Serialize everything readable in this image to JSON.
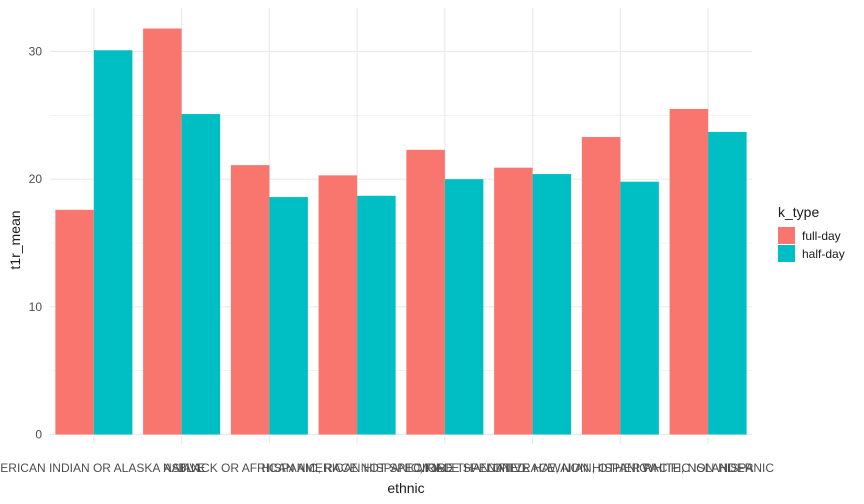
{
  "chart_data": {
    "type": "bar",
    "xlabel": "ethnic",
    "ylabel": "t1r_mean",
    "ylim": [
      0,
      32.5
    ],
    "yticks": [
      0,
      10,
      20,
      30
    ],
    "grid": true,
    "legend_position": "right",
    "legend_title": "k_type",
    "categories": [
      "AMERICAN INDIAN OR ALASKA NATIVE",
      "ASIAN",
      "BLACK OR AFRICAN AMERICAN",
      "HISPANIC, RACE NOT SPECIFIED",
      "HISPANIC, RACE SPECIFIED",
      "MORE THAN ONE RACE, NON HISPANIC",
      "NATIVE HAWAIIAN, OTHER PACIFIC ISLANDER",
      "WHITE, NON-HISPANIC"
    ],
    "series": [
      {
        "name": "full-day",
        "color": "#F8766D",
        "values": [
          17.6,
          31.8,
          21.1,
          20.3,
          22.3,
          20.9,
          23.3,
          25.5
        ]
      },
      {
        "name": "half-day",
        "color": "#00BFC4",
        "values": [
          30.1,
          25.1,
          18.6,
          18.7,
          20.0,
          20.4,
          19.8,
          23.7
        ]
      }
    ]
  }
}
